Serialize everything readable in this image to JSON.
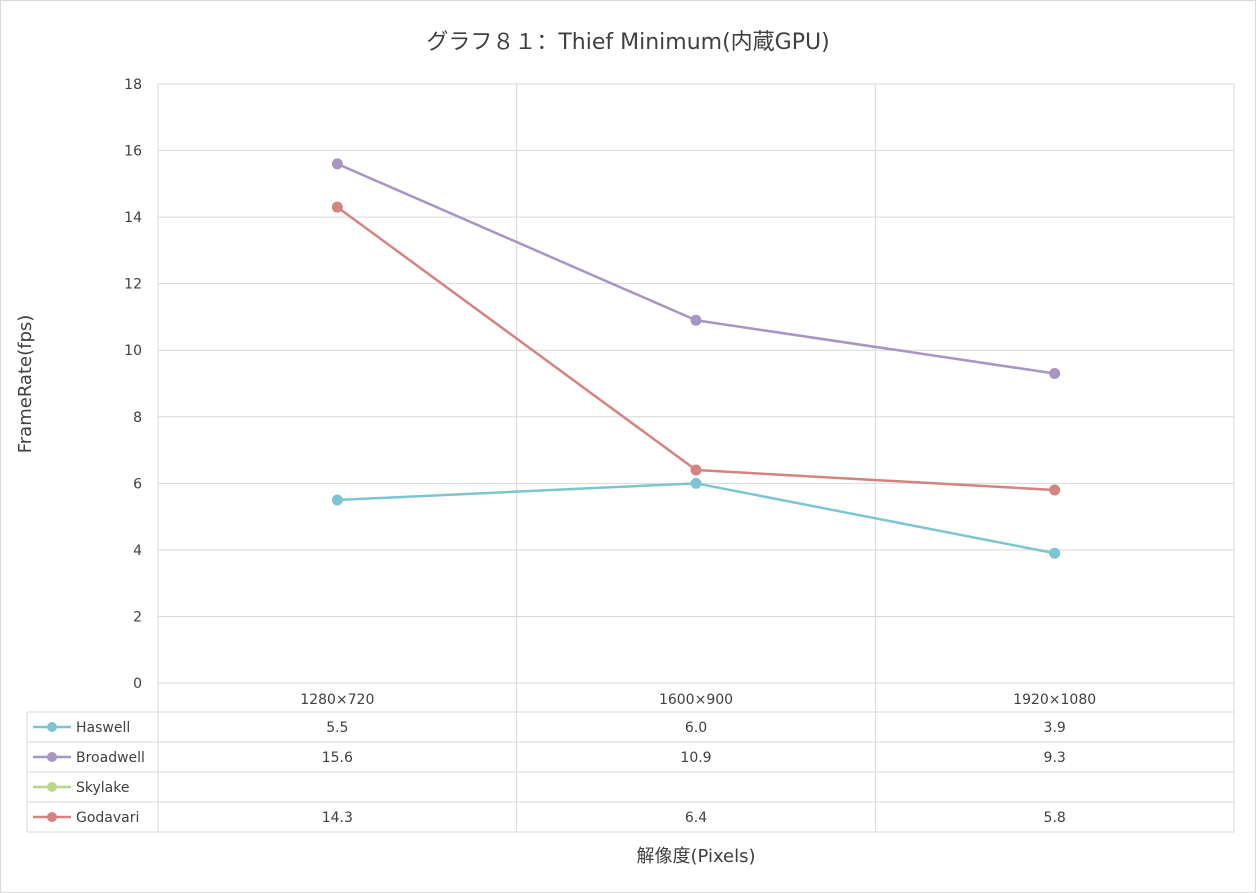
{
  "chart_data": {
    "type": "line",
    "title": "グラフ８１：Thief Minimum(内蔵GPU)",
    "xlabel": "解像度(Pixels)",
    "ylabel": "FrameRate(fps)",
    "categories": [
      "1280×720",
      "1600×900",
      "1920×1080"
    ],
    "ylim": [
      0,
      18
    ],
    "yticks": [
      0,
      2,
      4,
      6,
      8,
      10,
      12,
      14,
      16,
      18
    ],
    "grid": true,
    "legend": "data-table",
    "series": [
      {
        "name": "Haswell",
        "color": "#7ec5d3",
        "values": [
          5.5,
          6.0,
          3.9
        ],
        "labels": [
          "5.5",
          "6.0",
          "3.9"
        ]
      },
      {
        "name": "Broadwell",
        "color": "#a795c5",
        "values": [
          15.6,
          10.9,
          9.3
        ],
        "labels": [
          "15.6",
          "10.9",
          "9.3"
        ]
      },
      {
        "name": "Skylake",
        "color": "#bcd58c",
        "values": [
          null,
          null,
          null
        ],
        "labels": [
          "",
          "",
          ""
        ]
      },
      {
        "name": "Godavari",
        "color": "#d5837f",
        "values": [
          14.3,
          6.4,
          5.8
        ],
        "labels": [
          "14.3",
          "6.4",
          "5.8"
        ]
      }
    ]
  }
}
